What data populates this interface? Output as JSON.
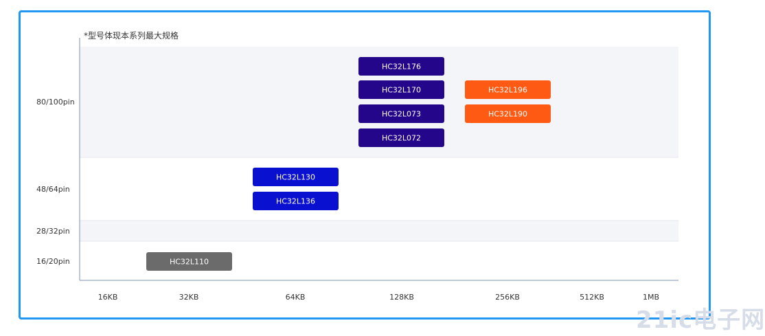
{
  "note": "*型号体现本系列最大规格",
  "watermark": "21ic电子网",
  "colors": {
    "frame": "#2196f3",
    "band_shaded": "#f4f5f8",
    "band_plain": "#ffffff",
    "axis": "#7a8fb5",
    "navy": "#24068a",
    "blue": "#0a10d0",
    "orange": "#ff5a14",
    "gray": "#6b6b6b"
  },
  "chart_data": {
    "type": "table",
    "title": "",
    "xlabel": "",
    "ylabel": "",
    "x_ticks": [
      "16KB",
      "32KB",
      "64KB",
      "128KB",
      "256KB",
      "512KB",
      "1MB"
    ],
    "y_bands": [
      "80/100pin",
      "48/64pin",
      "28/32pin",
      "16/20pin"
    ],
    "products": [
      {
        "name": "HC32L176",
        "pin": "80/100pin",
        "flash": "128KB",
        "color": "navy"
      },
      {
        "name": "HC32L170",
        "pin": "80/100pin",
        "flash": "128KB",
        "color": "navy"
      },
      {
        "name": "HC32L073",
        "pin": "80/100pin",
        "flash": "128KB",
        "color": "navy"
      },
      {
        "name": "HC32L072",
        "pin": "80/100pin",
        "flash": "128KB",
        "color": "navy"
      },
      {
        "name": "HC32L196",
        "pin": "80/100pin",
        "flash": "256KB",
        "color": "orange"
      },
      {
        "name": "HC32L190",
        "pin": "80/100pin",
        "flash": "256KB",
        "color": "orange"
      },
      {
        "name": "HC32L130",
        "pin": "48/64pin",
        "flash": "64KB",
        "color": "blue"
      },
      {
        "name": "HC32L136",
        "pin": "48/64pin",
        "flash": "64KB",
        "color": "blue"
      },
      {
        "name": "HC32L110",
        "pin": "16/20pin",
        "flash": "32KB",
        "color": "gray"
      }
    ]
  }
}
